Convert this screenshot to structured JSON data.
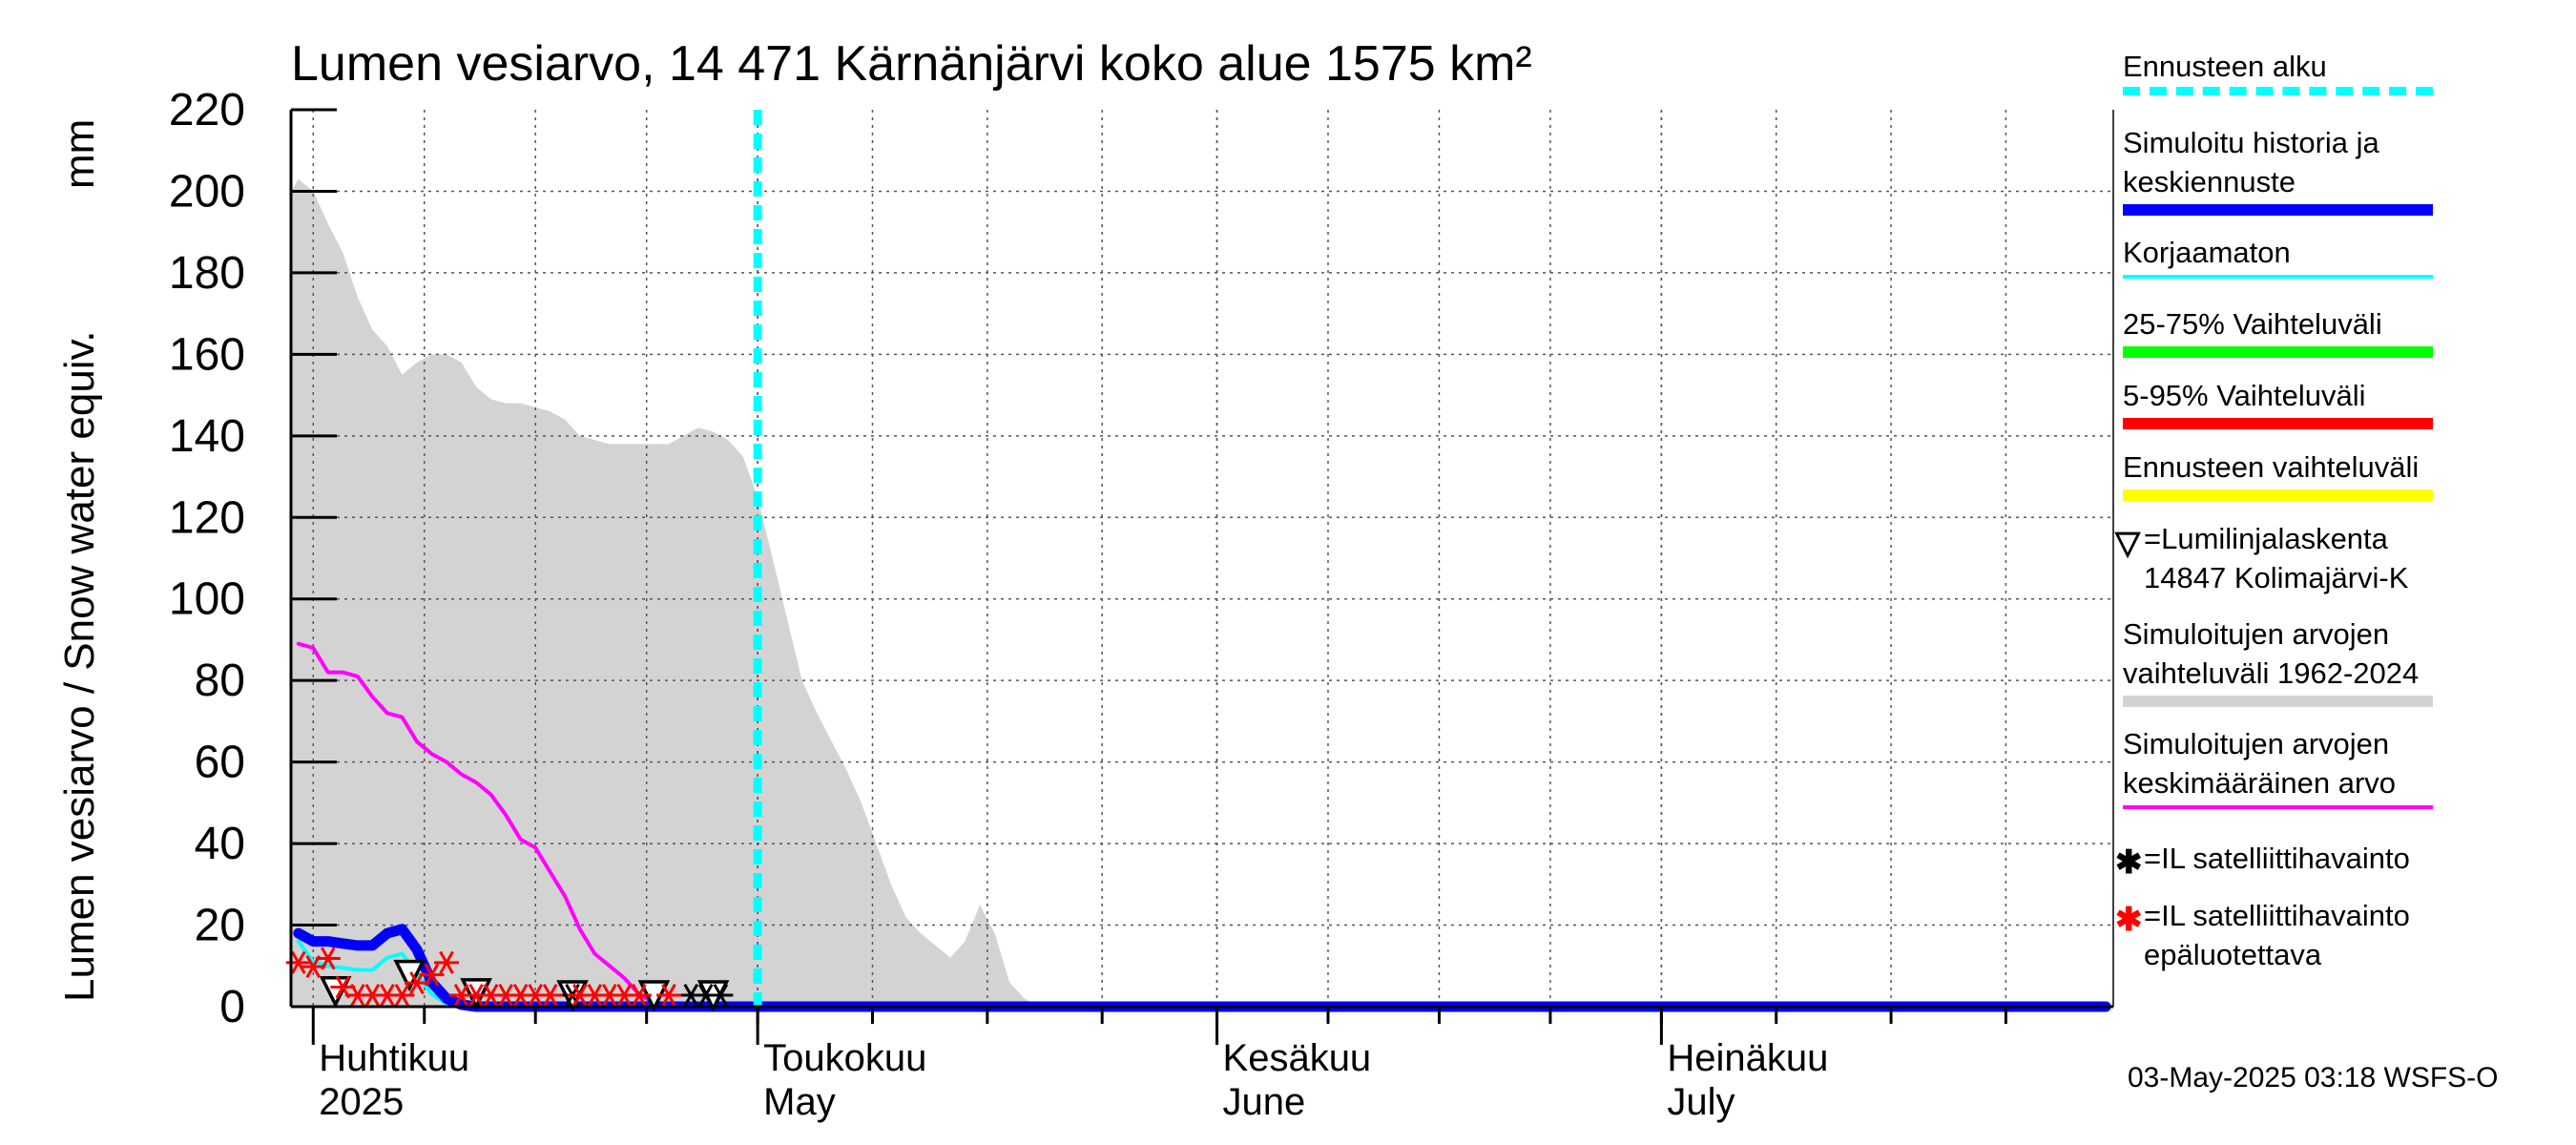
{
  "chart_data": {
    "type": "area",
    "title": "Lumen vesiarvo, 14 471 Kärnänjärvi koko alue 1575 km²",
    "ylabel": "Lumen vesiarvo / Snow water equiv.",
    "yunit": "mm",
    "ylim": [
      0,
      220
    ],
    "yticks": [
      0,
      20,
      40,
      60,
      80,
      100,
      120,
      140,
      160,
      180,
      200,
      220
    ],
    "xlim": [
      -1.5,
      121.5
    ],
    "x_unit": "days since 2025-04-01",
    "grid": true,
    "month_labels": [
      {
        "x": 0,
        "fi": "Huhtikuu",
        "en": "2025"
      },
      {
        "x": 30,
        "fi": "Toukokuu",
        "en": "May"
      },
      {
        "x": 61,
        "fi": "Kesäkuu",
        "en": "June"
      },
      {
        "x": 91,
        "fi": "Heinäkuu",
        "en": "July"
      }
    ],
    "forecast_start": 30,
    "series": [
      {
        "name": "Simuloitujen arvojen vaihteluväli 1962-2024",
        "kind": "band",
        "color": "#d3d3d3",
        "x": [
          -1.5,
          -1,
          0,
          1,
          2,
          3,
          4,
          5,
          6,
          7,
          8,
          9,
          10,
          11,
          12,
          13,
          14,
          15,
          16,
          17,
          18,
          19,
          20,
          21,
          22,
          23,
          24,
          25,
          26,
          27,
          28,
          29,
          30,
          31,
          32,
          33,
          34,
          35,
          36,
          37,
          38,
          39,
          40,
          41,
          42,
          43,
          44,
          45,
          46,
          47,
          48,
          49,
          50
        ],
        "upper": [
          200,
          203,
          200,
          192,
          185,
          174,
          166,
          162,
          155,
          158,
          160,
          160,
          158,
          152,
          149,
          148,
          148,
          147,
          146,
          144,
          140,
          139,
          138,
          138,
          138,
          138,
          138,
          140,
          142,
          141,
          139,
          135,
          125,
          110,
          95,
          80,
          72,
          65,
          58,
          50,
          40,
          30,
          22,
          18,
          15,
          12,
          16,
          25,
          18,
          6,
          2,
          0,
          0
        ],
        "lower": [
          0,
          0,
          0,
          0,
          0,
          0,
          0,
          0,
          0,
          0,
          0,
          0,
          0,
          0,
          0,
          0,
          0,
          0,
          0,
          0,
          0,
          0,
          0,
          0,
          0,
          0,
          0,
          0,
          0,
          0,
          0,
          0,
          0,
          0,
          0,
          0,
          0,
          0,
          0,
          0,
          0,
          0,
          0,
          0,
          0,
          0,
          0,
          0,
          0,
          0,
          0,
          0,
          0
        ]
      },
      {
        "name": "Simuloitujen arvojen keskimääräinen arvo",
        "kind": "line",
        "color": "#ff00ff",
        "width": 4,
        "x": [
          -1,
          0,
          1,
          2,
          3,
          4,
          5,
          6,
          7,
          8,
          9,
          10,
          11,
          12,
          13,
          14,
          15,
          16,
          17,
          18,
          19,
          20,
          21,
          22,
          23,
          24,
          25,
          26,
          27,
          28,
          29,
          30,
          31,
          32,
          121
        ],
        "y": [
          89,
          88,
          82,
          82,
          81,
          76,
          72,
          71,
          65,
          62,
          60,
          57,
          55,
          52,
          47,
          41,
          39,
          33,
          27,
          19,
          13,
          10,
          7,
          3,
          1,
          0.5,
          0.3,
          0,
          0,
          0,
          0,
          0,
          0,
          0,
          0
        ]
      },
      {
        "name": "Korjaamaton",
        "kind": "line",
        "color": "#00ffff",
        "width": 4,
        "x": [
          -1,
          0,
          1,
          2,
          3,
          4,
          5,
          6,
          7,
          8,
          9,
          10,
          11,
          12,
          13,
          121
        ],
        "y": [
          16,
          11,
          10,
          9.5,
          9,
          9,
          12,
          13,
          8,
          3,
          0.8,
          0.3,
          0,
          0,
          0,
          0
        ]
      },
      {
        "name": "Simuloitu historia ja keskiennuste",
        "kind": "line",
        "color": "#0000ff",
        "width": 11,
        "x": [
          -1,
          0,
          1,
          2,
          3,
          4,
          5,
          6,
          7,
          8,
          9,
          10,
          11,
          12,
          13,
          14,
          121
        ],
        "y": [
          18,
          16,
          16,
          15.5,
          15,
          15,
          18,
          19,
          14,
          6,
          2,
          0.5,
          0,
          0,
          0,
          0,
          0
        ]
      }
    ],
    "markers": [
      {
        "name": "Lumilinjalaskenta 14847 Kolimajärvi-K",
        "symbol": "triangle-down",
        "color": "#000000",
        "points": [
          {
            "x": 1.5,
            "y": 1
          },
          {
            "x": 6.5,
            "y": 5
          },
          {
            "x": 11,
            "y": 0.5
          },
          {
            "x": 17.5,
            "y": 0
          },
          {
            "x": 23,
            "y": 0
          },
          {
            "x": 27,
            "y": 0
          }
        ]
      },
      {
        "name": "IL satelliittihavainto",
        "symbol": "star",
        "color": "#000000",
        "points": [
          {
            "x": 17.5,
            "y": 0
          },
          {
            "x": 25.5,
            "y": 0
          },
          {
            "x": 26.5,
            "y": 0
          },
          {
            "x": 27.5,
            "y": 0
          }
        ]
      },
      {
        "name": "IL satelliittihavainto epäluotettava",
        "symbol": "star",
        "color": "#ff0000",
        "points": [
          {
            "x": -1,
            "y": 8
          },
          {
            "x": 0,
            "y": 7
          },
          {
            "x": 1,
            "y": 9
          },
          {
            "x": 2,
            "y": 2
          },
          {
            "x": 3,
            "y": 0
          },
          {
            "x": 4,
            "y": 0
          },
          {
            "x": 5,
            "y": 0
          },
          {
            "x": 6,
            "y": 0
          },
          {
            "x": 7,
            "y": 3
          },
          {
            "x": 8,
            "y": 5
          },
          {
            "x": 9,
            "y": 8
          },
          {
            "x": 10,
            "y": 0
          },
          {
            "x": 11,
            "y": 0
          },
          {
            "x": 12,
            "y": 0
          },
          {
            "x": 13,
            "y": 0
          },
          {
            "x": 14,
            "y": 0
          },
          {
            "x": 15,
            "y": 0
          },
          {
            "x": 16,
            "y": 0
          },
          {
            "x": 18,
            "y": 0
          },
          {
            "x": 19,
            "y": 0
          },
          {
            "x": 20,
            "y": 0
          },
          {
            "x": 21,
            "y": 0
          },
          {
            "x": 22,
            "y": 0
          },
          {
            "x": 24,
            "y": 0
          }
        ]
      }
    ]
  },
  "legend": [
    {
      "key": "forecast_start",
      "lines": [
        "Ennusteen alku"
      ],
      "style": "dash",
      "color": "#00ffff"
    },
    {
      "key": "sim_history",
      "lines": [
        "Simuloitu historia ja",
        "keskiennuste"
      ],
      "style": "line",
      "color": "#0000ff"
    },
    {
      "key": "uncorrected",
      "lines": [
        "Korjaamaton"
      ],
      "style": "line",
      "color": "#00ffff"
    },
    {
      "key": "range_25_75",
      "lines": [
        "25-75% Vaihteluväli"
      ],
      "style": "line",
      "color": "#00ff00"
    },
    {
      "key": "range_5_95",
      "lines": [
        "5-95% Vaihteluväli"
      ],
      "style": "line",
      "color": "#ff0000"
    },
    {
      "key": "forecast_range",
      "lines": [
        "Ennusteen vaihteluväli"
      ],
      "style": "line",
      "color": "#ffff00"
    },
    {
      "key": "snow_line",
      "lines": [
        "=Lumilinjalaskenta",
        "14847 Kolimajärvi-K"
      ],
      "style": "triangle",
      "color": "#000000"
    },
    {
      "key": "sim_range",
      "lines": [
        "Simuloitujen arvojen",
        "vaihteluväli 1962-2024"
      ],
      "style": "line",
      "color": "#d3d3d3"
    },
    {
      "key": "sim_mean",
      "lines": [
        "Simuloitujen arvojen",
        "keskimääräinen arvo"
      ],
      "style": "line",
      "color": "#ff00ff"
    },
    {
      "key": "sat_obs",
      "lines": [
        "=IL satelliittihavainto"
      ],
      "style": "star",
      "color": "#000000"
    },
    {
      "key": "sat_obs_unreliable",
      "lines": [
        "=IL satelliittihavainto",
        "epäluotettava"
      ],
      "style": "star",
      "color": "#ff0000"
    }
  ],
  "footer": {
    "timestamp": "03-May-2025 03:18 WSFS-O"
  }
}
